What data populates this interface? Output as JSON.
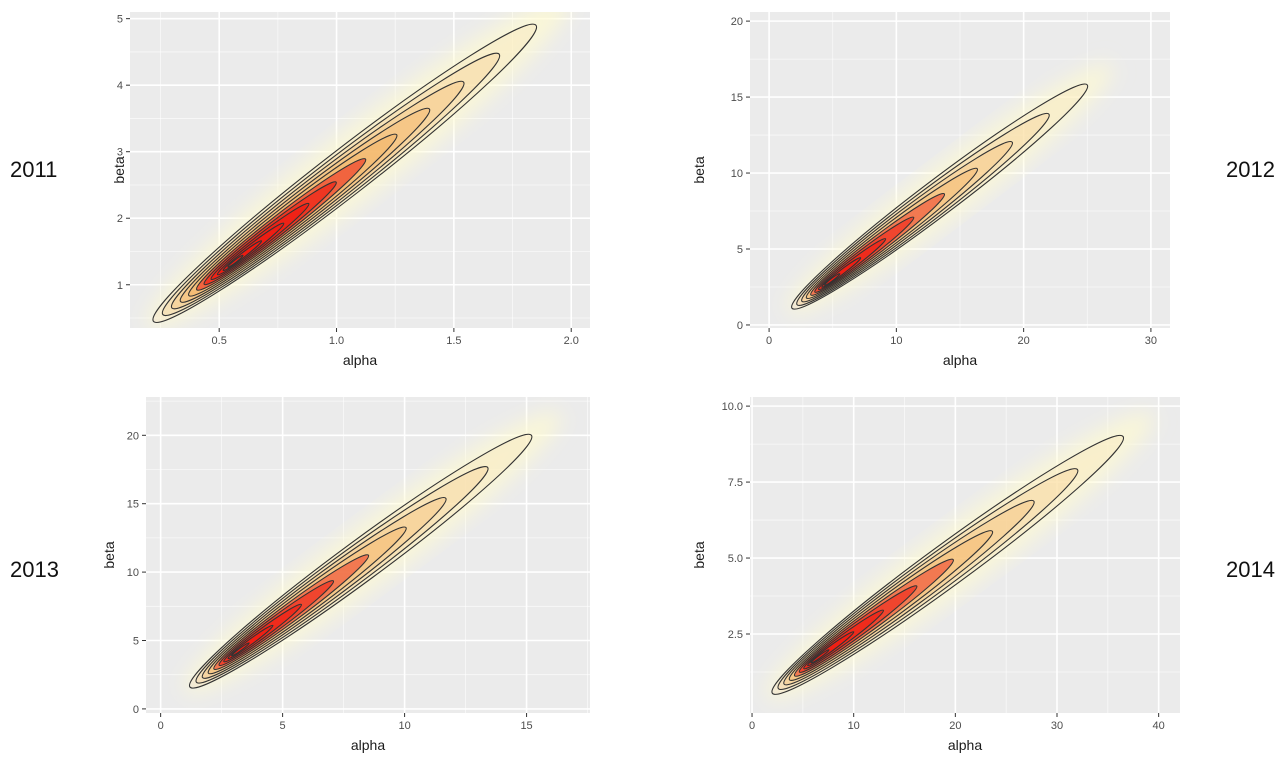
{
  "chart_data": [
    {
      "type": "heatmap",
      "panel_label": "2011",
      "xlabel": "alpha",
      "ylabel": "beta",
      "xlim": [
        0.12,
        2.08
      ],
      "ylim": [
        0.35,
        5.1
      ],
      "xticks": [
        {
          "v": 0.5,
          "label": "0.5"
        },
        {
          "v": 1.0,
          "label": "1.0"
        },
        {
          "v": 1.5,
          "label": "1.5"
        },
        {
          "v": 2.0,
          "label": "2.0"
        }
      ],
      "yticks": [
        {
          "v": 1,
          "label": "1"
        },
        {
          "v": 2,
          "label": "2"
        },
        {
          "v": 3,
          "label": "3"
        },
        {
          "v": 4,
          "label": "4"
        },
        {
          "v": 5,
          "label": "5"
        }
      ],
      "density_peak": {
        "alpha": 0.55,
        "beta": 1.3
      },
      "outer_contour": {
        "from": {
          "alpha": 0.22,
          "beta": 0.45
        },
        "to": {
          "alpha": 1.85,
          "beta": 4.9
        }
      },
      "contour_count": 11,
      "grid": true
    },
    {
      "type": "heatmap",
      "panel_label": "2012",
      "xlabel": "alpha",
      "ylabel": "beta",
      "xlim": [
        -1.5,
        31.5
      ],
      "ylim": [
        -0.2,
        20.6
      ],
      "xticks": [
        {
          "v": 0,
          "label": "0"
        },
        {
          "v": 10,
          "label": "10"
        },
        {
          "v": 20,
          "label": "20"
        },
        {
          "v": 30,
          "label": "30"
        }
      ],
      "yticks": [
        {
          "v": 0,
          "label": "0"
        },
        {
          "v": 5,
          "label": "5"
        },
        {
          "v": 10,
          "label": "10"
        },
        {
          "v": 15,
          "label": "15"
        },
        {
          "v": 20,
          "label": "20"
        }
      ],
      "density_peak": {
        "alpha": 4.5,
        "beta": 2.7
      },
      "outer_contour": {
        "from": {
          "alpha": 1.8,
          "beta": 1.1
        },
        "to": {
          "alpha": 25,
          "beta": 15.8
        }
      },
      "contour_count": 9,
      "grid": true
    },
    {
      "type": "heatmap",
      "panel_label": "2013",
      "xlabel": "alpha",
      "ylabel": "beta",
      "xlim": [
        -0.6,
        17.6
      ],
      "ylim": [
        -0.3,
        22.8
      ],
      "xticks": [
        {
          "v": 0,
          "label": "0"
        },
        {
          "v": 5,
          "label": "5"
        },
        {
          "v": 10,
          "label": "10"
        },
        {
          "v": 15,
          "label": "15"
        }
      ],
      "yticks": [
        {
          "v": 0,
          "label": "0"
        },
        {
          "v": 5,
          "label": "5"
        },
        {
          "v": 10,
          "label": "10"
        },
        {
          "v": 15,
          "label": "15"
        },
        {
          "v": 20,
          "label": "20"
        }
      ],
      "density_peak": {
        "alpha": 3.0,
        "beta": 4.0
      },
      "outer_contour": {
        "from": {
          "alpha": 1.2,
          "beta": 1.6
        },
        "to": {
          "alpha": 15.2,
          "beta": 20.0
        }
      },
      "contour_count": 9,
      "grid": true
    },
    {
      "type": "heatmap",
      "panel_label": "2014",
      "xlabel": "alpha",
      "ylabel": "beta",
      "xlim": [
        -0.2,
        42.1
      ],
      "ylim": [
        -0.1,
        10.3
      ],
      "xticks": [
        {
          "v": 0,
          "label": "0"
        },
        {
          "v": 10,
          "label": "10"
        },
        {
          "v": 20,
          "label": "20"
        },
        {
          "v": 30,
          "label": "30"
        },
        {
          "v": 40,
          "label": "40"
        }
      ],
      "yticks": [
        {
          "v": 2.5,
          "label": "2.5"
        },
        {
          "v": 5.0,
          "label": "5.0"
        },
        {
          "v": 7.5,
          "label": "7.5"
        },
        {
          "v": 10.0,
          "label": "10.0"
        }
      ],
      "density_peak": {
        "alpha": 6.0,
        "beta": 1.6
      },
      "outer_contour": {
        "from": {
          "alpha": 2.0,
          "beta": 0.55
        },
        "to": {
          "alpha": 36.5,
          "beta": 9.0
        }
      },
      "contour_count": 9,
      "grid": true
    }
  ],
  "colors": {
    "panel_background": "#ebebeb",
    "grid_line": "#ffffff",
    "contour_line": "#333333",
    "density_low": "#fffbd0",
    "density_mid": "#f3b061",
    "density_high": "#ee1c12"
  }
}
